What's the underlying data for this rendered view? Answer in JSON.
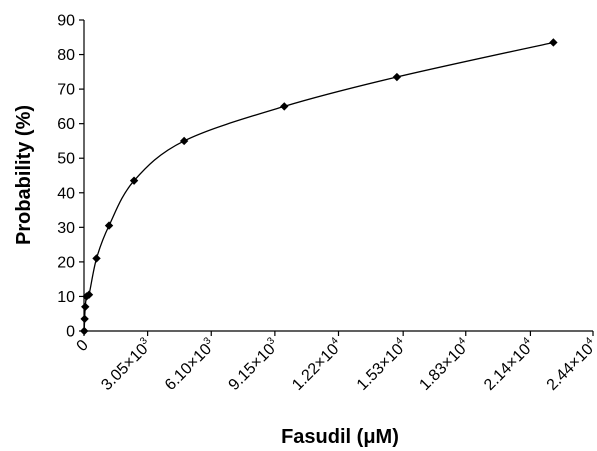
{
  "chart_data": {
    "type": "line",
    "title": "",
    "xlabel": "Fasudil (μM)",
    "ylabel": "Probability (%)",
    "xlim": [
      0,
      24400
    ],
    "ylim": [
      0,
      90
    ],
    "grid": false,
    "legend": "none",
    "marker": "diamond",
    "color": "#000000",
    "y_ticks": [
      "0",
      "10",
      "20",
      "30",
      "40",
      "50",
      "60",
      "70",
      "80",
      "90"
    ],
    "x_ticks": [
      {
        "value": 0,
        "mantissa": "0",
        "exponent": ""
      },
      {
        "value": 3050,
        "mantissa": "3.05×10",
        "exponent": "3"
      },
      {
        "value": 6100,
        "mantissa": "6.10×10",
        "exponent": "3"
      },
      {
        "value": 9150,
        "mantissa": "9.15×10",
        "exponent": "3"
      },
      {
        "value": 12200,
        "mantissa": "1.22×10",
        "exponent": "4"
      },
      {
        "value": 15300,
        "mantissa": "1.53×10",
        "exponent": "4"
      },
      {
        "value": 18300,
        "mantissa": "1.83×10",
        "exponent": "4"
      },
      {
        "value": 21400,
        "mantissa": "2.14×10",
        "exponent": "4"
      },
      {
        "value": 24400,
        "mantissa": "2.44×10",
        "exponent": "4"
      }
    ],
    "series": [
      {
        "x": [
          10,
          30,
          60,
          120,
          240,
          600,
          1200,
          2400,
          4800,
          9600,
          15000,
          22500
        ],
        "y": [
          0,
          3.5,
          7,
          10,
          10.5,
          21,
          30.5,
          43.5,
          55,
          65,
          73.5,
          83.5
        ]
      }
    ]
  }
}
